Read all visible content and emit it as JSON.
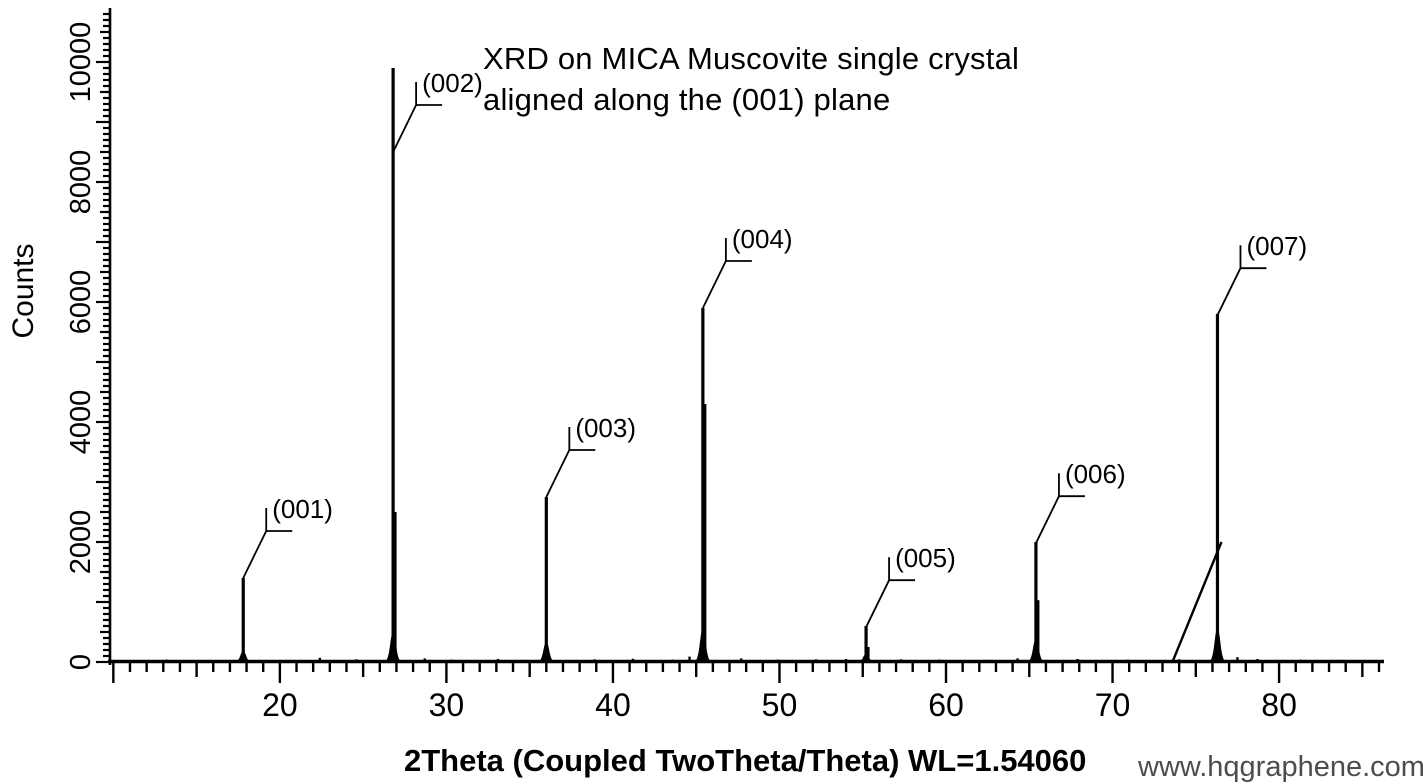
{
  "page": {
    "background": "#ffffff"
  },
  "chart_data": {
    "type": "line",
    "title_lines": [
      "XRD on MICA Muscovite single crystal",
      "aligned along the (001) plane"
    ],
    "xlabel": "2Theta (Coupled TwoTheta/Theta) WL=1.54060",
    "ylabel": "Counts",
    "watermark": "www.hqgraphene.com",
    "axis_color": "#000000",
    "watermark_color": "#4d4d4d",
    "x_range_deg": [
      9.8,
      86.3
    ],
    "y_range_counts": [
      0,
      10900
    ],
    "x_major_tick_values": [
      20,
      30,
      40,
      50,
      60,
      70,
      80
    ],
    "x_major_tick_labels": [
      "20",
      "30",
      "40",
      "50",
      "60",
      "70",
      "80"
    ],
    "x_minor_step_deg": 1,
    "x_medium_step_deg": 5,
    "y_major_tick_values": [
      0,
      2000,
      4000,
      6000,
      8000,
      10000
    ],
    "y_major_tick_labels": [
      "0",
      "2000",
      "4000",
      "6000",
      "8000",
      "10000"
    ],
    "y_minor_step_counts": 100,
    "grid": false,
    "legend": false,
    "peaks": [
      {
        "label": "(001)",
        "two_theta": 17.8,
        "counts": 1400,
        "leader_attach_counts": 1400,
        "base_counts": 160
      },
      {
        "label": "(002)",
        "two_theta": 26.8,
        "counts": 9900,
        "leader_attach_counts": 8500,
        "base_counts": 450,
        "shoulder_counts": 2500
      },
      {
        "label": "(003)",
        "two_theta": 36.0,
        "counts": 2750,
        "leader_attach_counts": 2750,
        "base_counts": 300
      },
      {
        "label": "(004)",
        "two_theta": 45.4,
        "counts": 5900,
        "leader_attach_counts": 5900,
        "base_counts": 500,
        "shoulder_counts": 4300
      },
      {
        "label": "(005)",
        "two_theta": 55.2,
        "counts": 600,
        "leader_attach_counts": 580,
        "base_counts": 120,
        "shoulder_counts": 250
      },
      {
        "label": "(006)",
        "two_theta": 65.4,
        "counts": 2000,
        "leader_attach_counts": 1980,
        "base_counts": 350,
        "shoulder_counts": 1030
      },
      {
        "label": "(007)",
        "two_theta": 76.3,
        "counts": 5800,
        "leader_attach_counts": 5780,
        "base_counts": 500,
        "satellite": {
          "offset_deg": 0.25,
          "counts": 2000
        }
      }
    ],
    "baseline_noise": [
      {
        "two_theta": 13.2,
        "counts": 40
      },
      {
        "two_theta": 16.1,
        "counts": 30
      },
      {
        "two_theta": 22.4,
        "counts": 70
      },
      {
        "two_theta": 24.6,
        "counts": 45
      },
      {
        "two_theta": 28.7,
        "counts": 60
      },
      {
        "two_theta": 30.3,
        "counts": 40
      },
      {
        "two_theta": 33.1,
        "counts": 50
      },
      {
        "two_theta": 34.6,
        "counts": 35
      },
      {
        "two_theta": 38.9,
        "counts": 45
      },
      {
        "two_theta": 41.2,
        "counts": 55
      },
      {
        "two_theta": 43.6,
        "counts": 40
      },
      {
        "two_theta": 44.6,
        "counts": 90
      },
      {
        "two_theta": 47.7,
        "counts": 60
      },
      {
        "two_theta": 49.9,
        "counts": 40
      },
      {
        "two_theta": 52.2,
        "counts": 45
      },
      {
        "two_theta": 54.0,
        "counts": 50
      },
      {
        "two_theta": 57.3,
        "counts": 45
      },
      {
        "two_theta": 59.6,
        "counts": 40
      },
      {
        "two_theta": 62.4,
        "counts": 35
      },
      {
        "two_theta": 64.3,
        "counts": 60
      },
      {
        "two_theta": 67.9,
        "counts": 50
      },
      {
        "two_theta": 70.9,
        "counts": 40
      },
      {
        "two_theta": 74.0,
        "counts": 45
      },
      {
        "two_theta": 77.5,
        "counts": 80
      },
      {
        "two_theta": 78.7,
        "counts": 50
      },
      {
        "two_theta": 81.3,
        "counts": 40
      },
      {
        "two_theta": 83.6,
        "counts": 35
      }
    ]
  }
}
